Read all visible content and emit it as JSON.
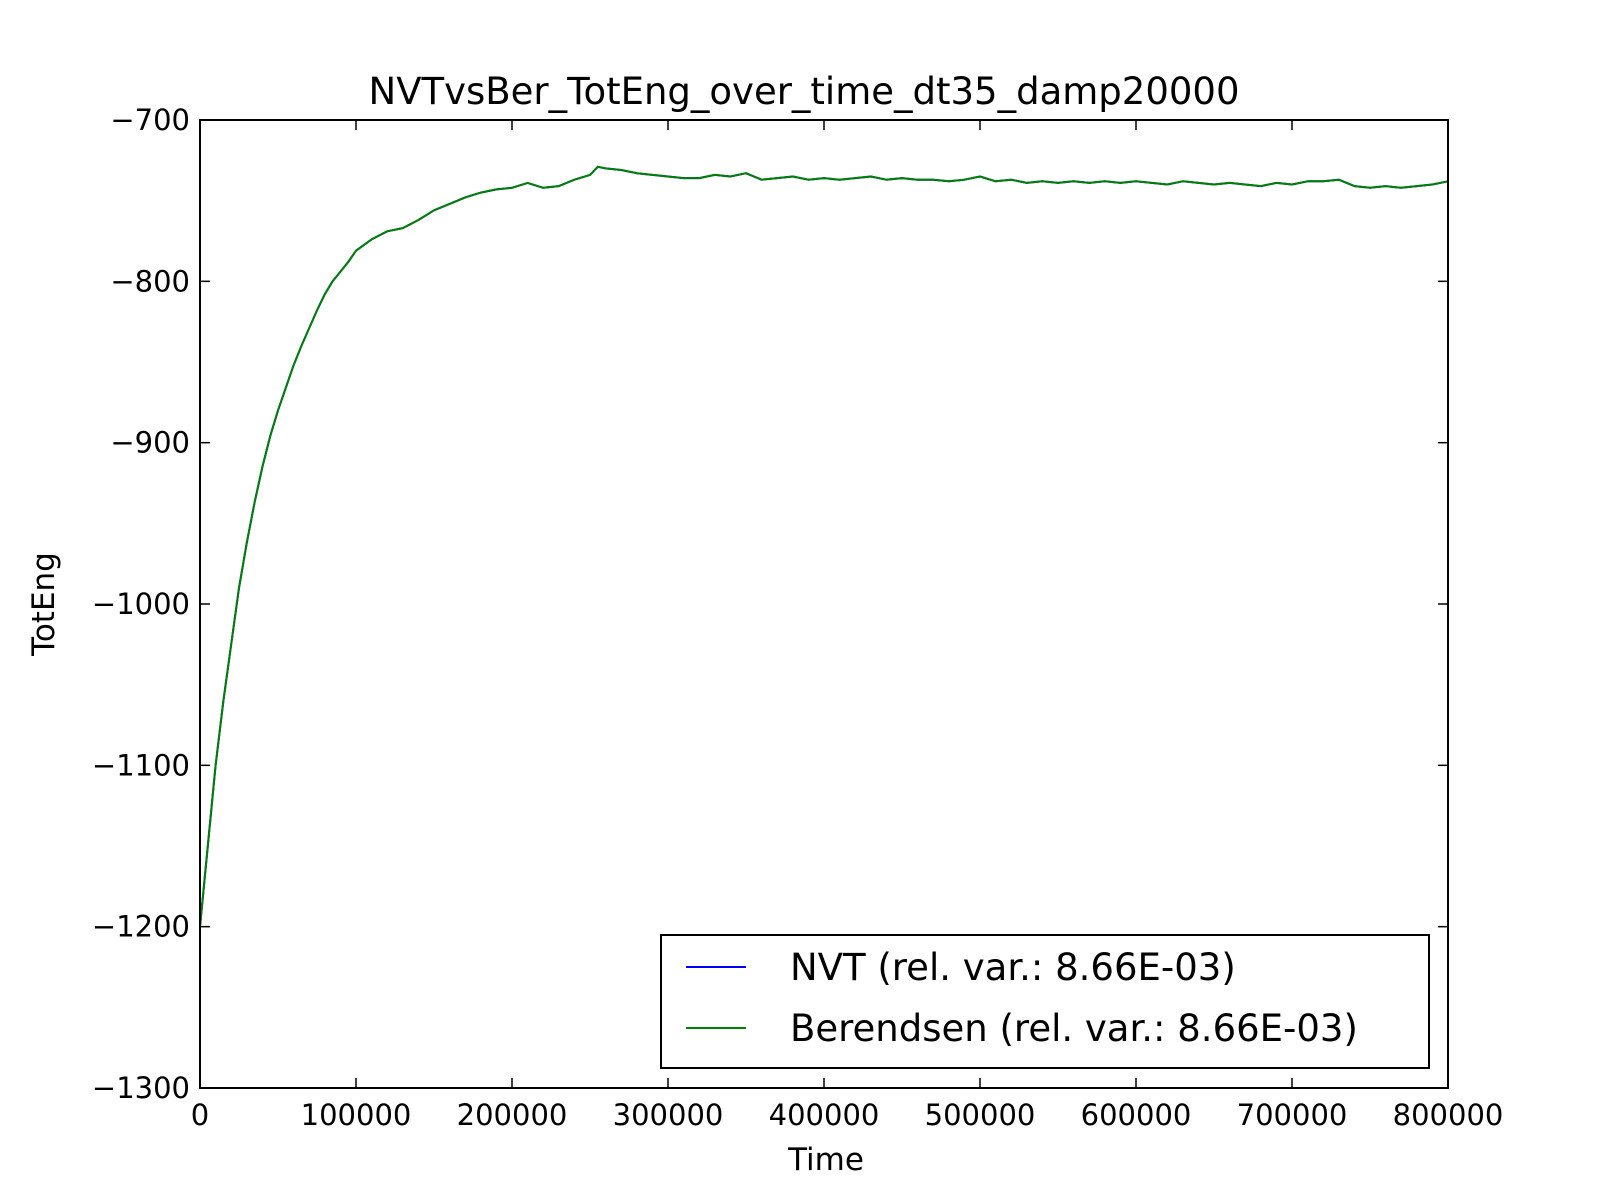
{
  "chart_data": {
    "type": "line",
    "title": "NVTvsBer_TotEng_over_time_dt35_damp20000",
    "xlabel": "Time",
    "ylabel": "TotEng",
    "xlim": [
      0,
      800000
    ],
    "ylim": [
      -1300,
      -700
    ],
    "xticks": [
      0,
      100000,
      200000,
      300000,
      400000,
      500000,
      600000,
      700000,
      800000
    ],
    "yticks": [
      -1300,
      -1200,
      -1100,
      -1000,
      -900,
      -800,
      -700
    ],
    "xtick_labels": [
      "0",
      "100000",
      "200000",
      "300000",
      "400000",
      "500000",
      "600000",
      "700000",
      "800000"
    ],
    "ytick_labels": [
      "−1300",
      "−1200",
      "−1100",
      "−1000",
      "−900",
      "−800",
      "−700"
    ],
    "grid": false,
    "legend_position": "bottom-right",
    "x": [
      0,
      5000,
      10000,
      15000,
      20000,
      25000,
      30000,
      35000,
      40000,
      45000,
      50000,
      55000,
      60000,
      65000,
      70000,
      75000,
      80000,
      85000,
      90000,
      95000,
      100000,
      110000,
      120000,
      130000,
      140000,
      150000,
      160000,
      170000,
      180000,
      190000,
      200000,
      210000,
      220000,
      230000,
      240000,
      250000,
      255000,
      260000,
      270000,
      280000,
      290000,
      300000,
      310000,
      320000,
      330000,
      340000,
      350000,
      360000,
      370000,
      380000,
      390000,
      400000,
      410000,
      420000,
      430000,
      440000,
      450000,
      460000,
      470000,
      480000,
      490000,
      500000,
      510000,
      520000,
      530000,
      540000,
      550000,
      560000,
      570000,
      580000,
      590000,
      600000,
      610000,
      620000,
      630000,
      640000,
      650000,
      660000,
      670000,
      680000,
      690000,
      700000,
      710000,
      720000,
      730000,
      740000,
      750000,
      760000,
      770000,
      780000,
      790000,
      800000
    ],
    "series": [
      {
        "name": "NVT (rel. var.: 8.66E-03)",
        "color": "#0000ff",
        "values": [
          -1200,
          -1150,
          -1100,
          -1060,
          -1025,
          -990,
          -962,
          -937,
          -915,
          -896,
          -880,
          -866,
          -852,
          -840,
          -829,
          -818,
          -808,
          -800,
          -794,
          -788,
          -781,
          -774,
          -769,
          -767,
          -762,
          -756,
          -752,
          -748,
          -745,
          -743,
          -742,
          -739,
          -742,
          -741,
          -737,
          -734,
          -729,
          -730,
          -731,
          -733,
          -734,
          -735,
          -736,
          -736,
          -734,
          -735,
          -733,
          -737,
          -736,
          -735,
          -737,
          -736,
          -737,
          -736,
          -735,
          -737,
          -736,
          -737,
          -737,
          -738,
          -737,
          -735,
          -738,
          -737,
          -739,
          -738,
          -739,
          -738,
          -739,
          -738,
          -739,
          -738,
          -739,
          -740,
          -738,
          -739,
          -740,
          -739,
          -740,
          -741,
          -739,
          -740,
          -738,
          -738,
          -737,
          -741,
          -742,
          -741,
          -742,
          -741,
          -740,
          -738
        ]
      },
      {
        "name": "Berendsen (rel. var.: 8.66E-03)",
        "color": "#008000",
        "values": [
          -1200,
          -1150,
          -1100,
          -1060,
          -1025,
          -990,
          -962,
          -937,
          -915,
          -896,
          -880,
          -866,
          -852,
          -840,
          -829,
          -818,
          -808,
          -800,
          -794,
          -788,
          -781,
          -774,
          -769,
          -767,
          -762,
          -756,
          -752,
          -748,
          -745,
          -743,
          -742,
          -739,
          -742,
          -741,
          -737,
          -734,
          -729,
          -730,
          -731,
          -733,
          -734,
          -735,
          -736,
          -736,
          -734,
          -735,
          -733,
          -737,
          -736,
          -735,
          -737,
          -736,
          -737,
          -736,
          -735,
          -737,
          -736,
          -737,
          -737,
          -738,
          -737,
          -735,
          -738,
          -737,
          -739,
          -738,
          -739,
          -738,
          -739,
          -738,
          -739,
          -738,
          -739,
          -740,
          -738,
          -739,
          -740,
          -739,
          -740,
          -741,
          -739,
          -740,
          -738,
          -738,
          -737,
          -741,
          -742,
          -741,
          -742,
          -741,
          -740,
          -738
        ]
      }
    ]
  }
}
